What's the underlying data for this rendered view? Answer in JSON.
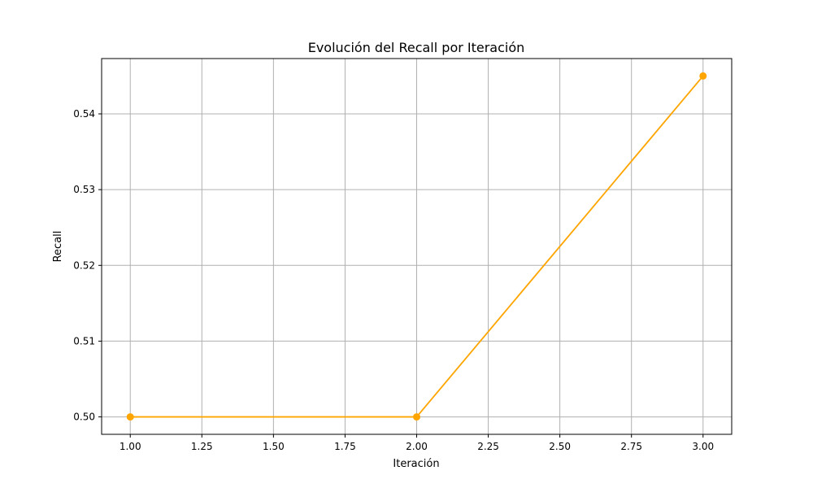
{
  "chart_data": {
    "type": "line",
    "title": "Evolución del Recall por Iteración",
    "xlabel": "Iteración",
    "ylabel": "Recall",
    "x": [
      1.0,
      2.0,
      3.0
    ],
    "series": [
      {
        "values": [
          0.5,
          0.5,
          0.545
        ],
        "color": "#FFA500",
        "marker": "circle"
      }
    ],
    "xlim": [
      0.9,
      3.1
    ],
    "ylim": [
      0.4977,
      0.5473
    ],
    "xticks": [
      1.0,
      1.25,
      1.5,
      1.75,
      2.0,
      2.25,
      2.5,
      2.75,
      3.0
    ],
    "xtick_labels": [
      "1.00",
      "1.25",
      "1.50",
      "1.75",
      "2.00",
      "2.25",
      "2.50",
      "2.75",
      "3.00"
    ],
    "yticks": [
      0.5,
      0.51,
      0.52,
      0.53,
      0.54
    ],
    "ytick_labels": [
      "0.50",
      "0.51",
      "0.52",
      "0.53",
      "0.54"
    ],
    "grid": true,
    "legend": "none"
  }
}
